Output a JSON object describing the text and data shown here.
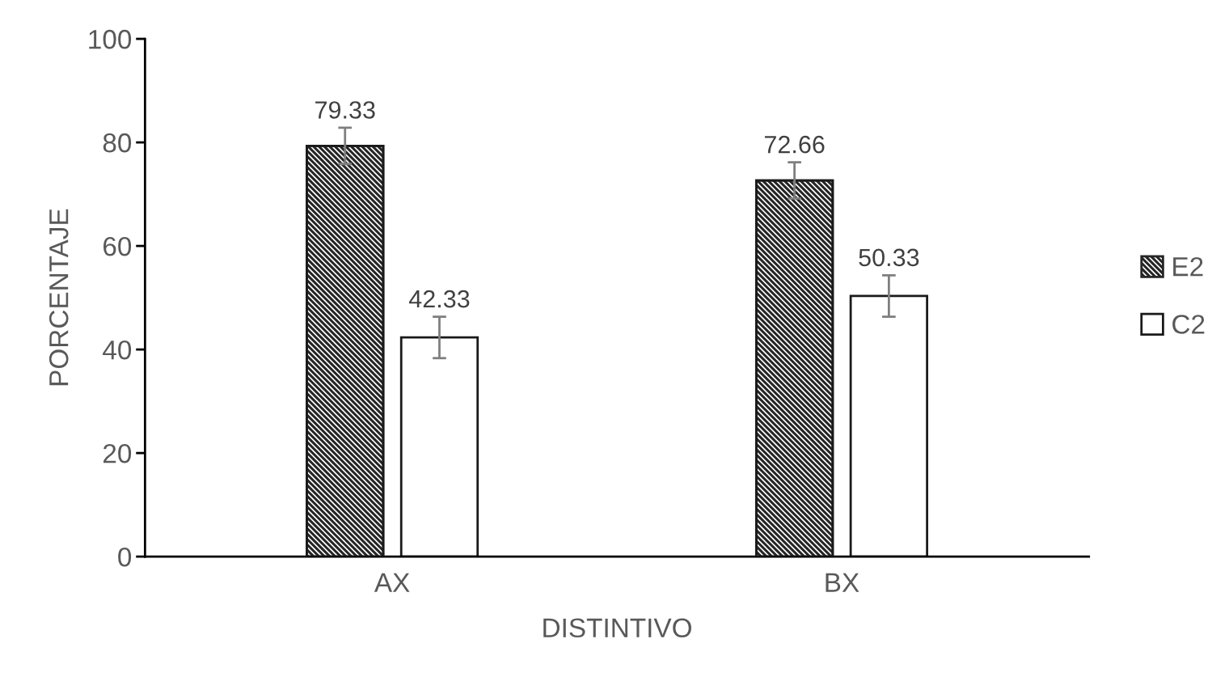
{
  "chart_data": {
    "type": "bar",
    "xlabel": "DISTINTIVO",
    "ylabel": "PORCENTAJE",
    "categories": [
      "AX",
      "BX"
    ],
    "series": [
      {
        "name": "E2",
        "color": "#262626",
        "values": [
          79.33,
          72.66
        ],
        "errors": [
          3.5,
          3.5
        ]
      },
      {
        "name": "C2",
        "color": "#ffffff",
        "values": [
          42.33,
          50.33
        ],
        "errors": [
          4,
          4
        ]
      }
    ],
    "ylim": [
      0,
      100
    ],
    "yticks": [
      0,
      20,
      40,
      60,
      80,
      100
    ],
    "data_labels": true,
    "legend": "right",
    "grid": false
  }
}
